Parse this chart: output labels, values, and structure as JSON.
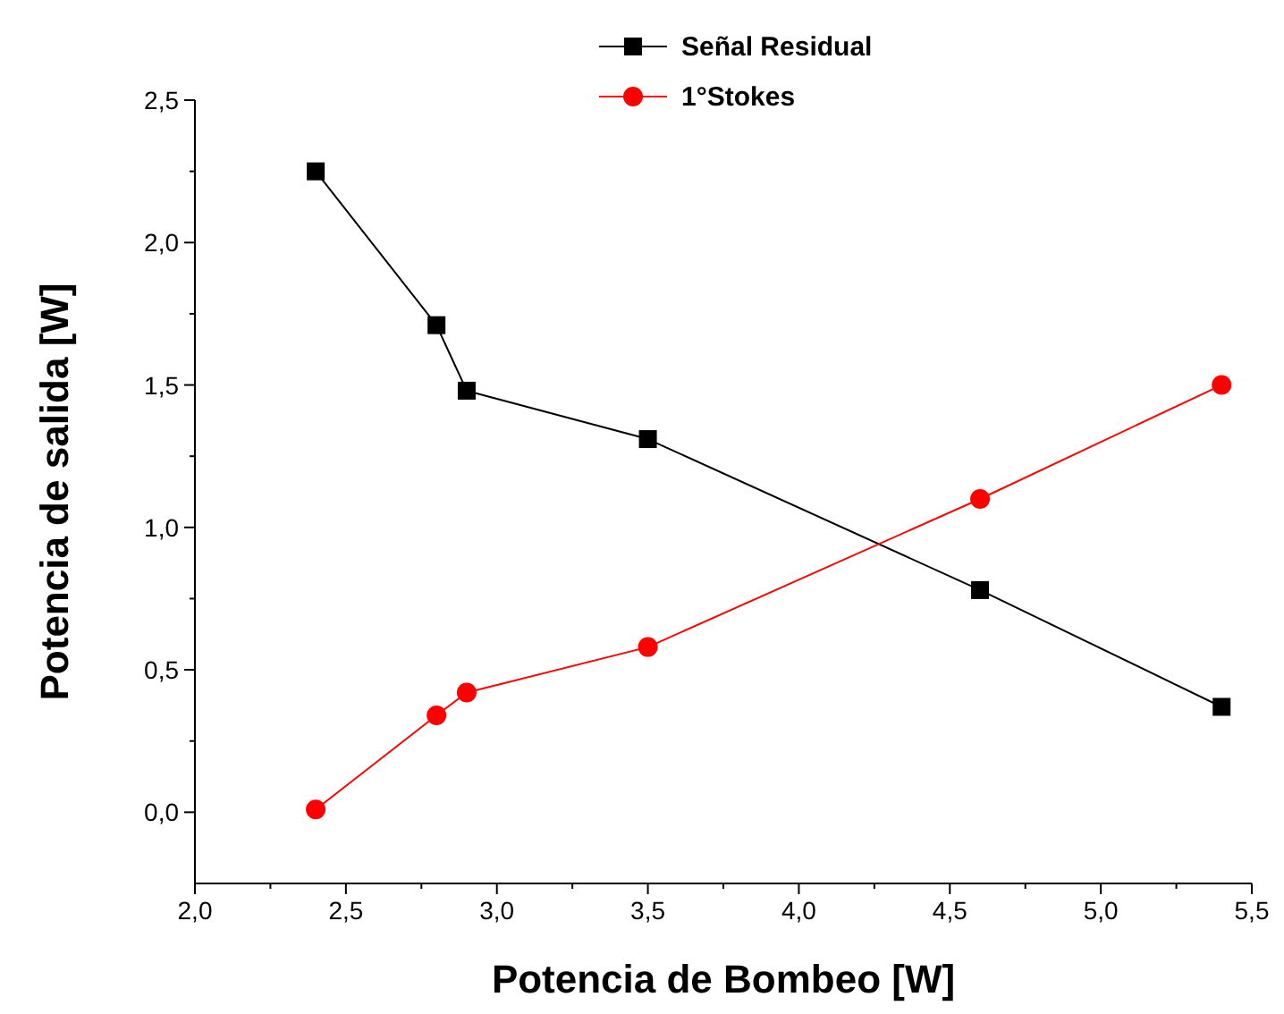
{
  "chart_data": {
    "type": "line",
    "xlabel": "Potencia de Bombeo [W]",
    "ylabel": "Potencia de salida [W]",
    "xlim": [
      2.0,
      5.5
    ],
    "ylim": [
      -0.25,
      2.5
    ],
    "xticks": [
      {
        "value": 2.0,
        "label": "2,0"
      },
      {
        "value": 2.25,
        "label": null
      },
      {
        "value": 2.5,
        "label": "2,5"
      },
      {
        "value": 2.75,
        "label": null
      },
      {
        "value": 3.0,
        "label": "3,0"
      },
      {
        "value": 3.25,
        "label": null
      },
      {
        "value": 3.5,
        "label": "3,5"
      },
      {
        "value": 3.75,
        "label": null
      },
      {
        "value": 4.0,
        "label": "4,0"
      },
      {
        "value": 4.25,
        "label": null
      },
      {
        "value": 4.5,
        "label": "4,5"
      },
      {
        "value": 4.75,
        "label": null
      },
      {
        "value": 5.0,
        "label": "5,0"
      },
      {
        "value": 5.25,
        "label": null
      },
      {
        "value": 5.5,
        "label": "5,5"
      }
    ],
    "yticks": [
      {
        "value": 0.0,
        "label": "0,0"
      },
      {
        "value": 0.25,
        "label": null
      },
      {
        "value": 0.5,
        "label": "0,5"
      },
      {
        "value": 0.75,
        "label": null
      },
      {
        "value": 1.0,
        "label": "1,0"
      },
      {
        "value": 1.25,
        "label": null
      },
      {
        "value": 1.5,
        "label": "1,5"
      },
      {
        "value": 1.75,
        "label": null
      },
      {
        "value": 2.0,
        "label": "2,0"
      },
      {
        "value": 2.25,
        "label": null
      },
      {
        "value": 2.5,
        "label": "2,5"
      }
    ],
    "x": [
      2.4,
      2.8,
      2.9,
      3.5,
      4.6,
      5.4
    ],
    "legend": "top right",
    "grid": false,
    "series": [
      {
        "name": "Señal Residual",
        "color": "#000000",
        "marker": "square",
        "values": [
          2.25,
          1.71,
          1.48,
          1.31,
          0.78,
          0.37
        ]
      },
      {
        "name": "1°Stokes",
        "color": "#ff0000",
        "marker": "circle",
        "values": [
          0.01,
          0.34,
          0.42,
          0.58,
          1.1,
          1.5
        ]
      }
    ]
  }
}
